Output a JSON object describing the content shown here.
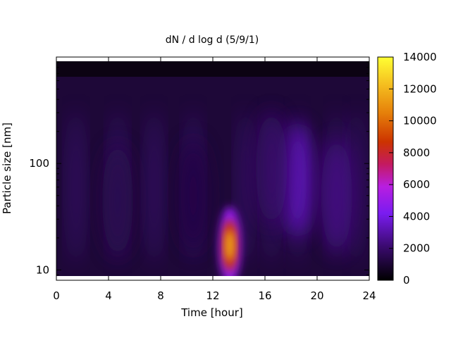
{
  "chart_data": {
    "type": "heatmap",
    "title": "dN / d log d (5/9/1)",
    "xlabel": "Time [hour]",
    "ylabel": "Particle size [nm]",
    "xlim": [
      0,
      24
    ],
    "x_ticks": [
      0,
      4,
      8,
      12,
      16,
      20,
      24
    ],
    "y_scale": "log",
    "ylim": [
      8,
      1000
    ],
    "y_ticks": [
      10,
      100
    ],
    "colorbar": {
      "label": "",
      "range": [
        0,
        14000
      ],
      "ticks": [
        0,
        2000,
        4000,
        6000,
        8000,
        10000,
        12000,
        14000
      ],
      "colormap": "gnuplot"
    },
    "grid": false,
    "features": [
      {
        "x": 13.3,
        "y": 17,
        "value": 12000,
        "description": "peak"
      },
      {
        "x": 18.5,
        "y": 70,
        "value": 3500
      },
      {
        "x": 21.5,
        "y": 50,
        "value": 2500
      },
      {
        "x": 4.7,
        "y": 45,
        "value": 1500
      },
      {
        "x": 10.5,
        "y": 50,
        "value": 1300
      },
      {
        "x": 16.5,
        "y": 90,
        "value": 2000
      }
    ]
  },
  "colors": {
    "background": "#ffffff",
    "axis": "#000000"
  }
}
